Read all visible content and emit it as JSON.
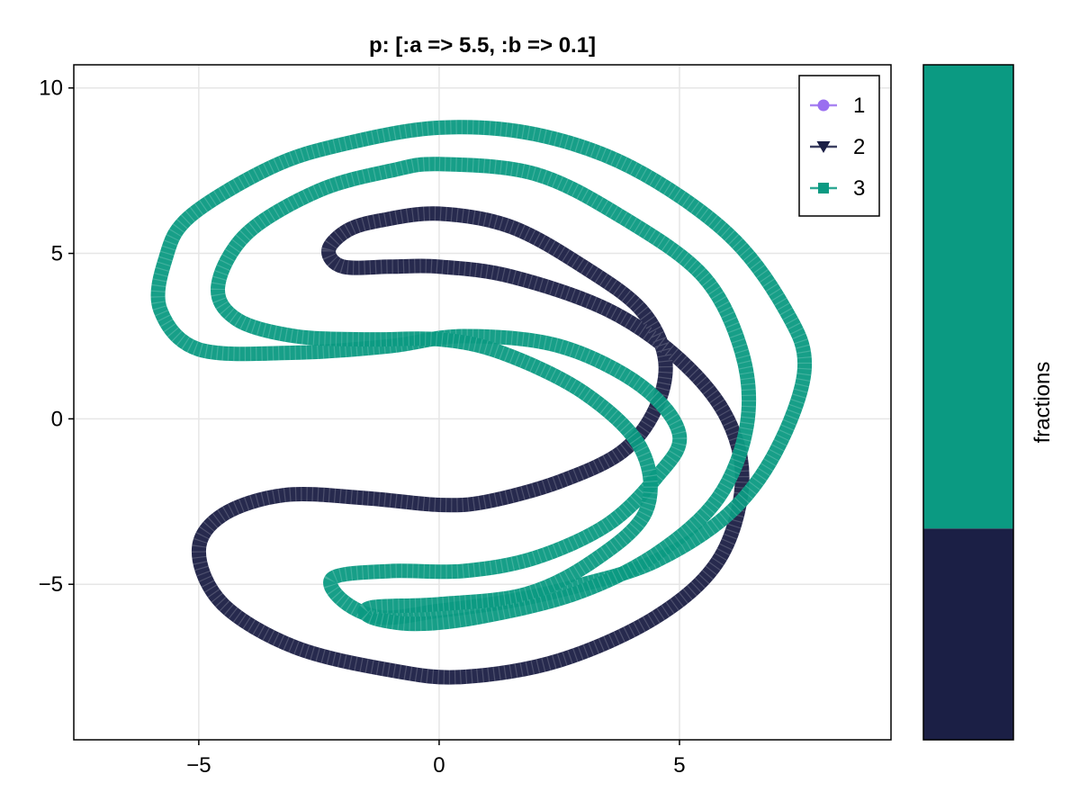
{
  "chart_data": {
    "type": "scatter",
    "title": "p: [:a => 5.5, :b => 0.1]",
    "xlabel": "",
    "ylabel": "",
    "xlim": [
      -7.6,
      9.4
    ],
    "ylim": [
      -9.7,
      10.7
    ],
    "xticks": [
      -5,
      0,
      5
    ],
    "xtick_labels": [
      "−5",
      "0",
      "5"
    ],
    "yticks": [
      -5,
      0,
      5,
      10
    ],
    "ytick_labels": [
      "−5",
      "0",
      "5",
      "10"
    ],
    "grid": true,
    "legend_position": "top-right",
    "colors": {
      "series1": "#9a6ff0",
      "series2": "#1b1f45",
      "series3": "#0b9a82",
      "grid": "#e6e6e6",
      "axis": "#000000"
    },
    "series": [
      {
        "name": "1",
        "marker": "circle",
        "points": []
      },
      {
        "name": "2",
        "marker": "triangle-down",
        "points": [
          [
            -2.3,
            5.1
          ],
          [
            -1.9,
            5.7
          ],
          [
            -1.2,
            6.0
          ],
          [
            0.0,
            6.2
          ],
          [
            1.5,
            5.8
          ],
          [
            3.0,
            4.6
          ],
          [
            4.2,
            3.3
          ],
          [
            4.7,
            1.8
          ],
          [
            4.5,
            0.3
          ],
          [
            3.8,
            -1.0
          ],
          [
            2.5,
            -1.9
          ],
          [
            1.0,
            -2.5
          ],
          [
            0.0,
            -2.6
          ],
          [
            -1.5,
            -2.4
          ],
          [
            -3.2,
            -2.3
          ],
          [
            -4.5,
            -2.9
          ],
          [
            -5.0,
            -4.0
          ],
          [
            -4.5,
            -5.6
          ],
          [
            -3.0,
            -6.9
          ],
          [
            -1.0,
            -7.6
          ],
          [
            0.5,
            -7.8
          ],
          [
            2.5,
            -7.3
          ],
          [
            4.5,
            -6.0
          ],
          [
            5.8,
            -4.3
          ],
          [
            6.3,
            -2.0
          ],
          [
            6.0,
            0.0
          ],
          [
            5.0,
            1.8
          ],
          [
            3.5,
            3.3
          ],
          [
            1.5,
            4.3
          ],
          [
            0.0,
            4.6
          ],
          [
            -1.0,
            4.6
          ],
          [
            -2.0,
            4.6
          ],
          [
            -2.3,
            5.1
          ]
        ]
      },
      {
        "name": "3",
        "marker": "square",
        "points": [
          [
            0.0,
            8.8
          ],
          [
            2.0,
            8.6
          ],
          [
            4.0,
            7.6
          ],
          [
            6.0,
            5.6
          ],
          [
            7.2,
            3.3
          ],
          [
            7.6,
            1.5
          ],
          [
            7.0,
            -1.0
          ],
          [
            6.0,
            -2.9
          ],
          [
            4.5,
            -4.3
          ],
          [
            3.0,
            -5.0
          ],
          [
            1.5,
            -5.5
          ],
          [
            0.0,
            -5.8
          ],
          [
            -1.2,
            -6.0
          ],
          [
            -2.0,
            -5.5
          ],
          [
            -2.2,
            -4.8
          ],
          [
            -1.0,
            -4.6
          ],
          [
            0.5,
            -4.6
          ],
          [
            2.0,
            -4.2
          ],
          [
            3.5,
            -3.2
          ],
          [
            4.5,
            -1.8
          ],
          [
            5.0,
            -0.5
          ],
          [
            4.2,
            1.0
          ],
          [
            2.5,
            2.2
          ],
          [
            0.5,
            2.5
          ],
          [
            -1.0,
            2.2
          ],
          [
            -3.0,
            2.0
          ],
          [
            -5.0,
            2.1
          ],
          [
            -5.8,
            3.3
          ],
          [
            -5.7,
            4.8
          ],
          [
            -5.2,
            6.1
          ],
          [
            -3.5,
            7.6
          ],
          [
            -2.0,
            8.3
          ],
          [
            0.0,
            8.8
          ]
        ]
      },
      {
        "name": "3",
        "marker": "square",
        "points": [
          [
            0.0,
            7.7
          ],
          [
            2.0,
            7.4
          ],
          [
            3.8,
            6.1
          ],
          [
            5.5,
            4.3
          ],
          [
            6.3,
            2.0
          ],
          [
            6.4,
            -0.2
          ],
          [
            5.8,
            -2.4
          ],
          [
            4.5,
            -4.1
          ],
          [
            2.8,
            -5.3
          ],
          [
            0.8,
            -6.0
          ],
          [
            -0.5,
            -6.2
          ],
          [
            -1.4,
            -6.0
          ],
          [
            -1.4,
            -5.7
          ],
          [
            0.0,
            -5.6
          ],
          [
            1.8,
            -5.3
          ],
          [
            3.2,
            -4.3
          ],
          [
            4.3,
            -2.8
          ],
          [
            4.2,
            -0.9
          ],
          [
            3.0,
            0.8
          ],
          [
            1.3,
            2.0
          ],
          [
            0.0,
            2.4
          ],
          [
            -1.5,
            2.4
          ],
          [
            -3.0,
            2.5
          ],
          [
            -4.2,
            3.0
          ],
          [
            -4.6,
            4.0
          ],
          [
            -4.0,
            5.6
          ],
          [
            -2.5,
            6.9
          ],
          [
            -1.0,
            7.5
          ],
          [
            0.0,
            7.7
          ]
        ]
      }
    ],
    "colorbar": {
      "label": "fractions",
      "segments": [
        {
          "from": 0.0,
          "to": 0.313,
          "color": "#1b1f45"
        },
        {
          "from": 0.313,
          "to": 1.0,
          "color": "#0b9a82"
        }
      ]
    }
  }
}
